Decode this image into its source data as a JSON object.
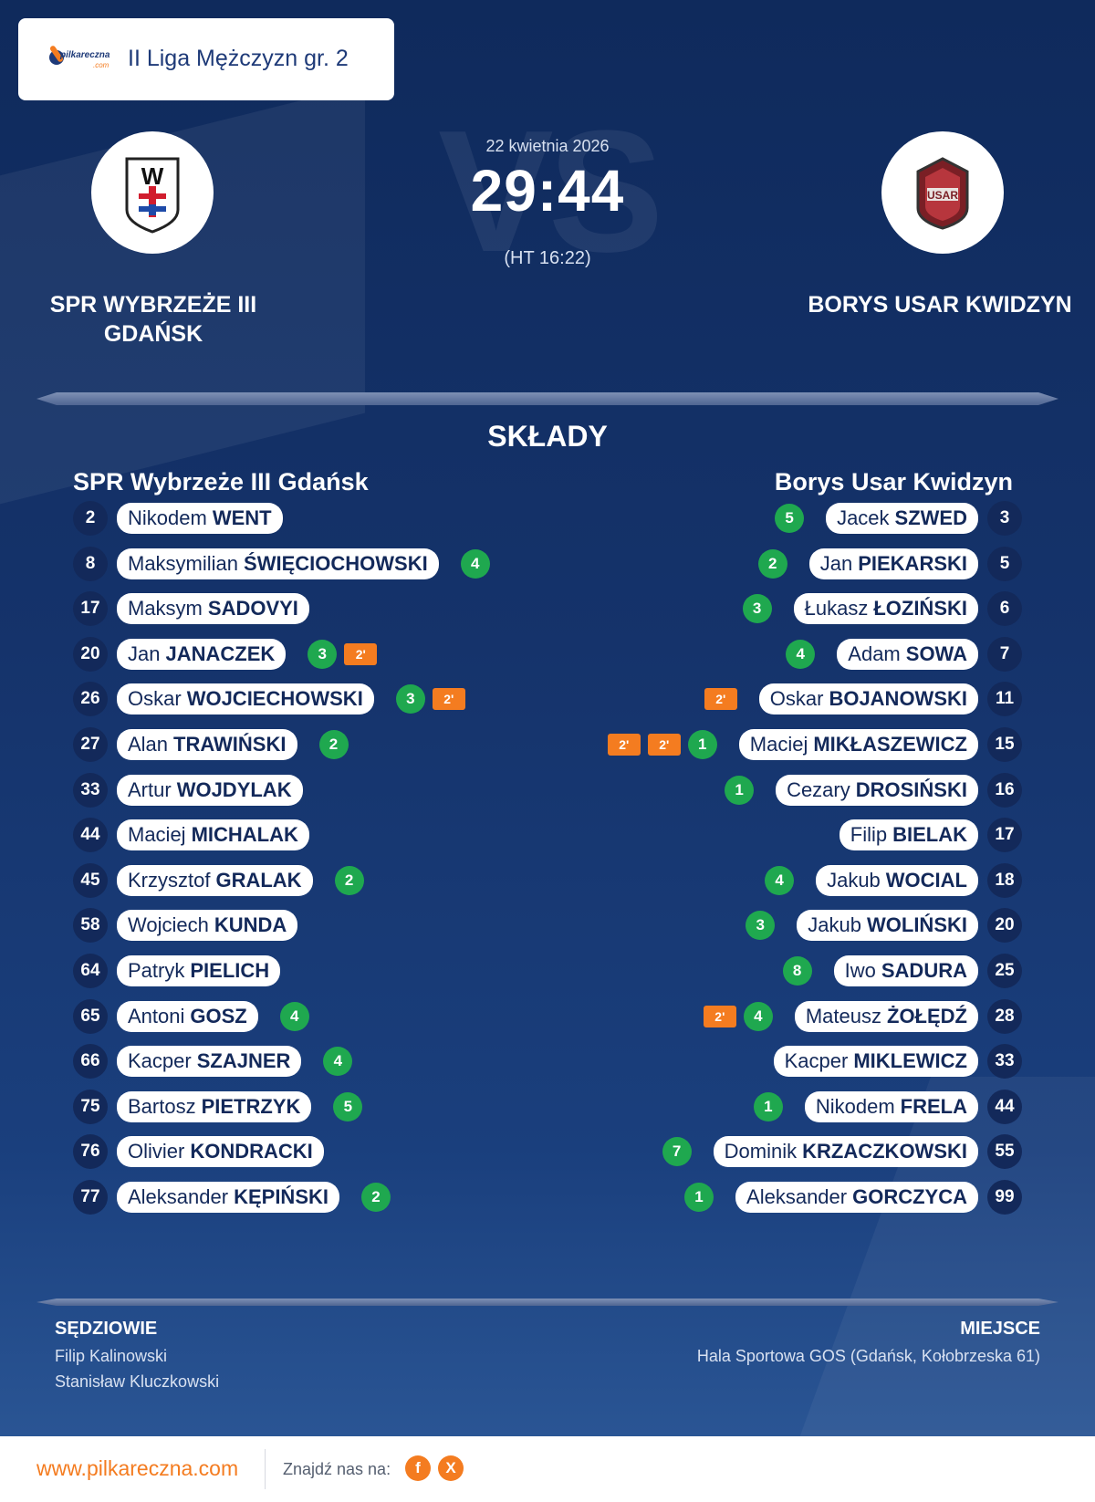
{
  "league": "II Liga Mężczyzn gr. 2",
  "brand": {
    "logo_text": "pilkareczna",
    "logo_suffix": ".com"
  },
  "match": {
    "date": "22 kwietnia 2026",
    "score": "29:44",
    "halftime": "(HT 16:22)",
    "home_team": "SPR WYBRZEŻE III GDAŃSK",
    "away_team": "BORYS USAR KWIDZYN"
  },
  "section_title": "SKŁADY",
  "home": {
    "lineup_title": "SPR Wybrzeże III Gdańsk",
    "players": [
      {
        "number": "2",
        "first": "Nikodem",
        "last": "WENT",
        "goals": "",
        "penalties": []
      },
      {
        "number": "8",
        "first": "Maksymilian",
        "last": "ŚWIĘCIOCHOWSKI",
        "goals": "4",
        "penalties": []
      },
      {
        "number": "17",
        "first": "Maksym",
        "last": "SADOVYI",
        "goals": "",
        "penalties": []
      },
      {
        "number": "20",
        "first": "Jan",
        "last": "JANACZEK",
        "goals": "3",
        "penalties": [
          "2'"
        ]
      },
      {
        "number": "26",
        "first": "Oskar",
        "last": "WOJCIECHOWSKI",
        "goals": "3",
        "penalties": [
          "2'"
        ]
      },
      {
        "number": "27",
        "first": "Alan",
        "last": "TRAWIŃSKI",
        "goals": "2",
        "penalties": []
      },
      {
        "number": "33",
        "first": "Artur",
        "last": "WOJDYLAK",
        "goals": "",
        "penalties": []
      },
      {
        "number": "44",
        "first": "Maciej",
        "last": "MICHALAK",
        "goals": "",
        "penalties": []
      },
      {
        "number": "45",
        "first": "Krzysztof",
        "last": "GRALAK",
        "goals": "2",
        "penalties": []
      },
      {
        "number": "58",
        "first": "Wojciech",
        "last": "KUNDA",
        "goals": "",
        "penalties": []
      },
      {
        "number": "64",
        "first": "Patryk",
        "last": "PIELICH",
        "goals": "",
        "penalties": []
      },
      {
        "number": "65",
        "first": "Antoni",
        "last": "GOSZ",
        "goals": "4",
        "penalties": []
      },
      {
        "number": "66",
        "first": "Kacper",
        "last": "SZAJNER",
        "goals": "4",
        "penalties": []
      },
      {
        "number": "75",
        "first": "Bartosz",
        "last": "PIETRZYK",
        "goals": "5",
        "penalties": []
      },
      {
        "number": "76",
        "first": "Olivier",
        "last": "KONDRACKI",
        "goals": "",
        "penalties": []
      },
      {
        "number": "77",
        "first": "Aleksander",
        "last": "KĘPIŃSKI",
        "goals": "2",
        "penalties": []
      }
    ]
  },
  "away": {
    "lineup_title": "Borys Usar Kwidzyn",
    "players": [
      {
        "number": "3",
        "first": "Jacek",
        "last": "SZWED",
        "goals": "5",
        "penalties": []
      },
      {
        "number": "5",
        "first": "Jan",
        "last": "PIEKARSKI",
        "goals": "2",
        "penalties": []
      },
      {
        "number": "6",
        "first": "Łukasz",
        "last": "ŁOZIŃSKI",
        "goals": "3",
        "penalties": []
      },
      {
        "number": "7",
        "first": "Adam",
        "last": "SOWA",
        "goals": "4",
        "penalties": []
      },
      {
        "number": "11",
        "first": "Oskar",
        "last": "BOJANOWSKI",
        "goals": "",
        "penalties": [
          "2'"
        ]
      },
      {
        "number": "15",
        "first": "Maciej",
        "last": "MIKŁASZEWICZ",
        "goals": "1",
        "penalties": [
          "2'",
          "2'"
        ]
      },
      {
        "number": "16",
        "first": "Cezary",
        "last": "DROSIŃSKI",
        "goals": "1",
        "penalties": []
      },
      {
        "number": "17",
        "first": "Filip",
        "last": "BIELAK",
        "goals": "",
        "penalties": []
      },
      {
        "number": "18",
        "first": "Jakub",
        "last": "WOCIAL",
        "goals": "4",
        "penalties": []
      },
      {
        "number": "20",
        "first": "Jakub",
        "last": "WOLIŃSKI",
        "goals": "3",
        "penalties": []
      },
      {
        "number": "25",
        "first": "Iwo",
        "last": "SADURA",
        "goals": "8",
        "penalties": []
      },
      {
        "number": "28",
        "first": "Mateusz",
        "last": "ŻOŁĘDŹ",
        "goals": "4",
        "penalties": [
          "2'"
        ]
      },
      {
        "number": "33",
        "first": "Kacper",
        "last": "MIKLEWICZ",
        "goals": "",
        "penalties": []
      },
      {
        "number": "44",
        "first": "Nikodem",
        "last": "FRELA",
        "goals": "1",
        "penalties": []
      },
      {
        "number": "55",
        "first": "Dominik",
        "last": "KRZACZKOWSKI",
        "goals": "7",
        "penalties": []
      },
      {
        "number": "99",
        "first": "Aleksander",
        "last": "GORCZYCA",
        "goals": "1",
        "penalties": []
      }
    ]
  },
  "referees": {
    "title": "SĘDZIOWIE",
    "names": [
      "Filip Kalinowski",
      "Stanisław Kluczkowski"
    ]
  },
  "venue": {
    "title": "MIEJSCE",
    "name": "Hala Sportowa GOS (Gdańsk, Kołobrzeska 61)"
  },
  "footer": {
    "url": "www.pilkareczna.com",
    "find_us": "Znajdź nas na:",
    "social": [
      "f",
      "X"
    ]
  },
  "colors": {
    "navy": "#13295a",
    "goal_green": "#1fa84f",
    "penalty_orange": "#f47c20"
  }
}
